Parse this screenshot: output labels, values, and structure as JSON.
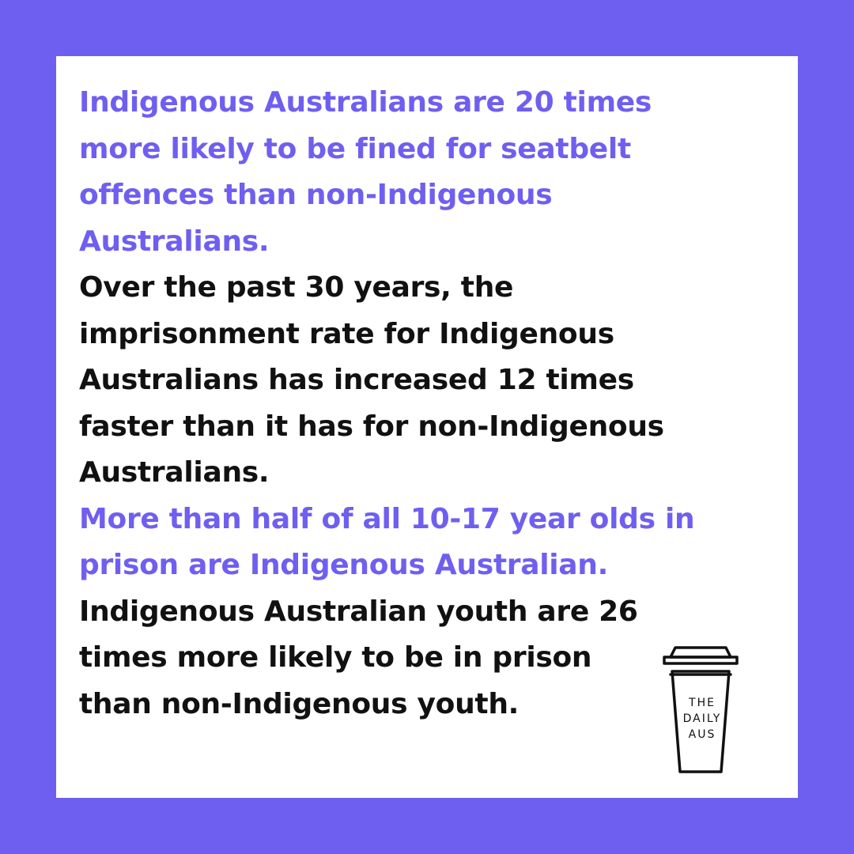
{
  "colors": {
    "background": "#6f5ff0",
    "accent": "#6f5ff0",
    "text": "#111111",
    "card": "#ffffff"
  },
  "facts": [
    {
      "text": "Indigenous Australians are 20 times\nmore likely to be fined for seatbelt\noffences than non-Indigenous\nAustralians.",
      "color": "accent"
    },
    {
      "text": "Over the past 30 years, the\nimprisonment rate for Indigenous\nAustralians has increased 12 times\nfaster than it has for non-Indigenous\nAustralians.",
      "color": "dark"
    },
    {
      "text": "More than half of all 10-17 year olds in\nprison are Indigenous Australian.",
      "color": "accent"
    },
    {
      "text": "Indigenous Australian youth are 26\ntimes more likely to be in prison\nthan non-Indigenous youth.",
      "color": "dark"
    }
  ],
  "logo": {
    "icon": "coffee-cup-icon",
    "line1": "THE",
    "line2": "DAILY",
    "line3": "AUS"
  }
}
